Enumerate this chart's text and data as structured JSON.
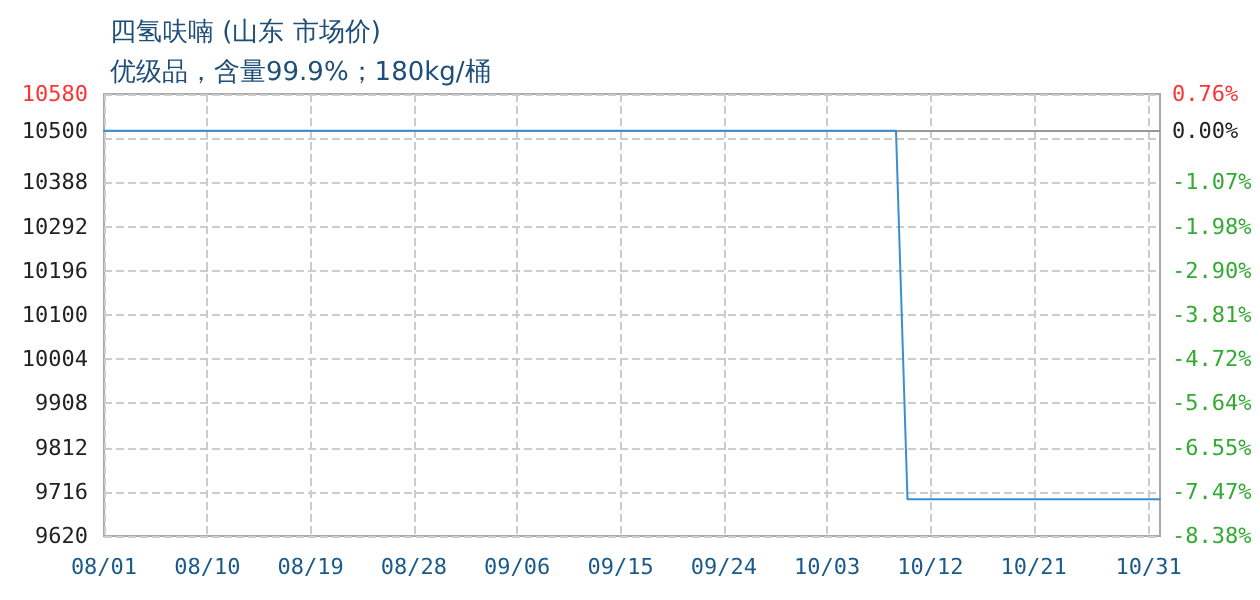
{
  "chart_data": {
    "type": "line",
    "title": "四氢呋喃 (山东 市场价)",
    "subtitle": "优级品，含量99.9%；180kg/桶",
    "x": [
      "--08-01",
      "--10-09",
      "--10-10",
      "--11-01"
    ],
    "series": [
      {
        "color": "#3a8fd0",
        "values": [
          10500,
          10500,
          9700,
          9700
        ]
      }
    ],
    "xlim": [
      "--08-01",
      "--11-01"
    ],
    "xticks": [
      {
        "value": "--08-01",
        "label": "08/01"
      },
      {
        "value": "--08-10",
        "label": "08/10"
      },
      {
        "value": "--08-19",
        "label": "08/19"
      },
      {
        "value": "--08-28",
        "label": "08/28"
      },
      {
        "value": "--09-06",
        "label": "09/06"
      },
      {
        "value": "--09-15",
        "label": "09/15"
      },
      {
        "value": "--09-24",
        "label": "09/24"
      },
      {
        "value": "--10-03",
        "label": "10/03"
      },
      {
        "value": "--10-12",
        "label": "10/12"
      },
      {
        "value": "--10-21",
        "label": "10/21"
      },
      {
        "value": "--10-31",
        "label": "10/31"
      }
    ],
    "ylim": [
      9620,
      10580
    ],
    "yticks": [
      9620,
      9716,
      9812,
      9908,
      10004,
      10100,
      10196,
      10292,
      10388,
      {
        "value": 10484,
        "label": null
      },
      10500,
      10580
    ],
    "y2lim": [
      -8.38,
      0.76
    ],
    "y2ticks": [
      {
        "value": -8.38,
        "label": "-8.38%"
      },
      {
        "value": -7.47,
        "label": "-7.47%"
      },
      {
        "value": -6.55,
        "label": "-6.55%"
      },
      {
        "value": -5.64,
        "label": "-5.64%"
      },
      {
        "value": -4.72,
        "label": "-4.72%"
      },
      {
        "value": -3.81,
        "label": "-3.81%"
      },
      {
        "value": -2.9,
        "label": "-2.90%"
      },
      {
        "value": -1.98,
        "label": "-1.98%"
      },
      {
        "value": -1.07,
        "label": "-1.07%"
      },
      {
        "value": 0,
        "label": "0.00%"
      },
      {
        "value": 0.76,
        "label": "0.76%"
      }
    ],
    "ref_lines": [
      {
        "axis": "y",
        "value": 10500,
        "color": "#999999",
        "line_style": "solid"
      }
    ],
    "grid": true,
    "marker": "none",
    "line_style": "solid"
  }
}
